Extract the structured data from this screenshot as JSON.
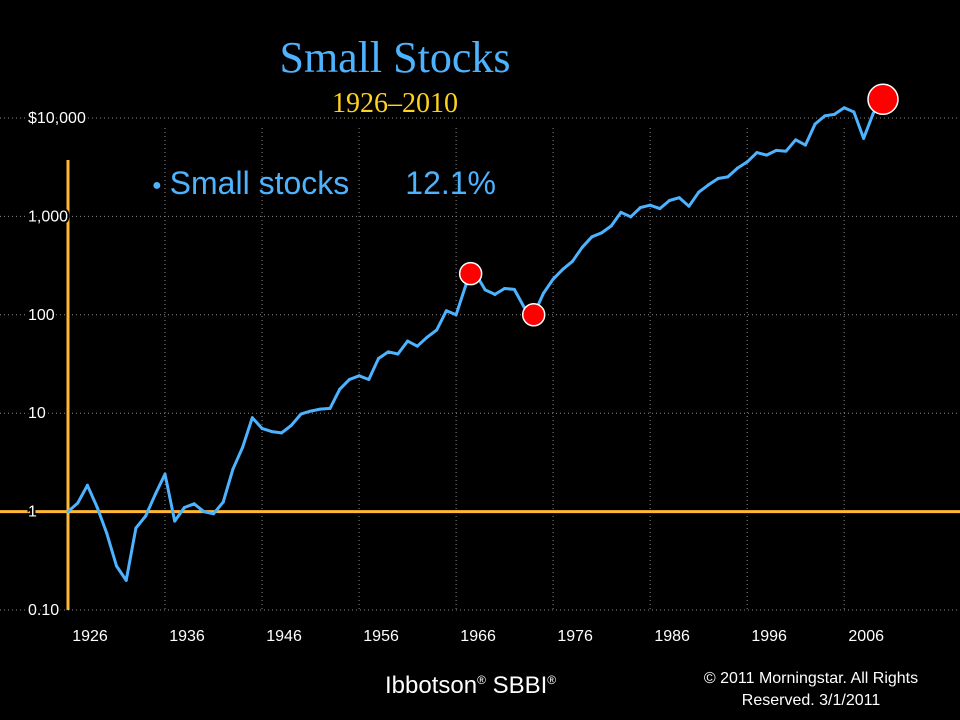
{
  "slide": {
    "title": "Small Stocks",
    "subtitle": "1926–2010",
    "legend": {
      "label": "Small stocks",
      "value": "12.1%"
    },
    "source": {
      "name": "Ibbotson",
      "mark": "®",
      "product": "SBBI",
      "mark2": "®"
    },
    "copyright": {
      "line1": "© 2011 Morningstar. All Rights",
      "line2": "Reserved. 3/1/2011"
    }
  },
  "colors": {
    "background": "#000000",
    "line": "#4db3ff",
    "axis": "#ffb833",
    "marker": "#ff0000",
    "grid": "#888888",
    "title": "#4db3ff",
    "subtitle": "#ffd21f",
    "tick": "#ffffff"
  },
  "chart_data": {
    "type": "line",
    "title": "Small Stocks",
    "subtitle": "1926–2010",
    "xlabel": "",
    "ylabel": "",
    "yscale": "log",
    "xlim": [
      1926,
      2010
    ],
    "ylim": [
      0.1,
      10000
    ],
    "grid": true,
    "legend_position": "top-left",
    "x_ticks": [
      1926,
      1936,
      1946,
      1956,
      1966,
      1976,
      1986,
      1996,
      2006
    ],
    "x_tick_labels": [
      "1926",
      "1936",
      "1946",
      "1956",
      "1966",
      "1976",
      "1986",
      "1996",
      "2006"
    ],
    "y_ticks": [
      0.1,
      1,
      10,
      100,
      1000,
      10000
    ],
    "y_tick_labels": [
      "0.10",
      "1",
      "10",
      "100",
      "1,000",
      "$10,000"
    ],
    "series": [
      {
        "name": "Small stocks",
        "x": [
          1926,
          1927,
          1928,
          1929,
          1930,
          1931,
          1932,
          1933,
          1934,
          1935,
          1936,
          1937,
          1938,
          1939,
          1940,
          1941,
          1942,
          1943,
          1944,
          1945,
          1946,
          1947,
          1948,
          1949,
          1950,
          1951,
          1952,
          1953,
          1954,
          1955,
          1956,
          1957,
          1958,
          1959,
          1960,
          1961,
          1962,
          1963,
          1964,
          1965,
          1966,
          1967,
          1968,
          1969,
          1970,
          1971,
          1972,
          1973,
          1974,
          1975,
          1976,
          1977,
          1978,
          1979,
          1980,
          1981,
          1982,
          1983,
          1984,
          1985,
          1986,
          1987,
          1988,
          1989,
          1990,
          1991,
          1992,
          1993,
          1994,
          1995,
          1996,
          1997,
          1998,
          1999,
          2000,
          2001,
          2002,
          2003,
          2004,
          2005,
          2006,
          2007,
          2008,
          2009,
          2010
        ],
        "values": [
          1.0,
          1.22,
          1.85,
          1.11,
          0.6,
          0.28,
          0.2,
          0.68,
          0.9,
          1.5,
          2.4,
          0.8,
          1.1,
          1.2,
          1.0,
          0.95,
          1.25,
          2.7,
          4.5,
          9.0,
          7.0,
          6.5,
          6.3,
          7.5,
          9.8,
          10.5,
          11.0,
          11.2,
          17.5,
          22.0,
          24.0,
          22.0,
          36.0,
          42.0,
          40.0,
          54.0,
          48.0,
          59.0,
          70.0,
          110.0,
          100.0,
          200.0,
          262.0,
          179.0,
          161.0,
          185.0,
          181.0,
          120.0,
          100.0,
          165.0,
          230.0,
          290.0,
          350.0,
          485.0,
          620.0,
          680.0,
          800.0,
          1100.0,
          990.0,
          1230.0,
          1300.0,
          1200.0,
          1450.0,
          1550.0,
          1270.0,
          1760.0,
          2090.0,
          2430.0,
          2520.0,
          3100.0,
          3580.0,
          4450.0,
          4200.0,
          4690.0,
          4600.0,
          6000.0,
          5300.0,
          8700.0,
          10500.0,
          10900.0,
          12700.0,
          11500.0,
          6200.0,
          11200.0,
          15500.0
        ]
      }
    ],
    "highlight_points": [
      {
        "x": 1967.5,
        "y": 262
      },
      {
        "x": 1974,
        "y": 100
      },
      {
        "x": 2010,
        "y": 15500
      }
    ]
  }
}
